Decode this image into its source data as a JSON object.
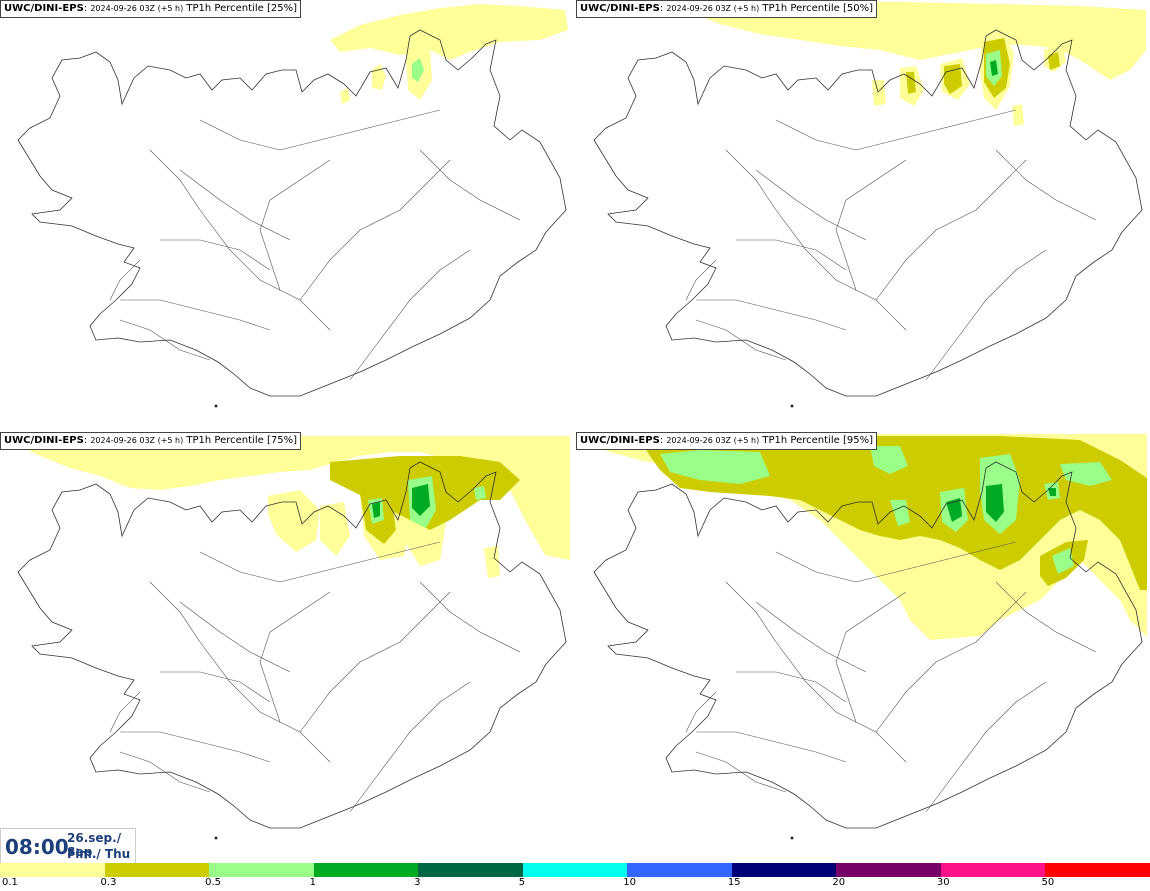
{
  "panels": [
    {
      "model": "UWC/DINI-EPS",
      "date": "2024-09-26 03Z (+5 h)",
      "product": "TP1h Percentile [25%]"
    },
    {
      "model": "UWC/DINI-EPS",
      "date": "2024-09-26 03Z (+5 h)",
      "product": "TP1h Percentile [50%]"
    },
    {
      "model": "UWC/DINI-EPS",
      "date": "2024-09-26 03Z (+5 h)",
      "product": "TP1h Percentile [75%]"
    },
    {
      "model": "UWC/DINI-EPS",
      "date": "2024-09-26 03Z (+5 h)",
      "product": "TP1h Percentile [95%]"
    }
  ],
  "valid_time": {
    "time": "08:00",
    "date_line1": "26.sep./ Sep",
    "date_line2": "Fim./ Thu"
  },
  "legend": {
    "levels": [
      "0.1",
      "0.3",
      "0.5",
      "1",
      "3",
      "5",
      "10",
      "15",
      "20",
      "30",
      "50"
    ],
    "colors": [
      "#ffff99",
      "#cccc00",
      "#99ff88",
      "#00aa22",
      "#006644",
      "#00ffee",
      "#3366ff",
      "#000077",
      "#770066",
      "#ff1188",
      "#ff0000"
    ]
  }
}
